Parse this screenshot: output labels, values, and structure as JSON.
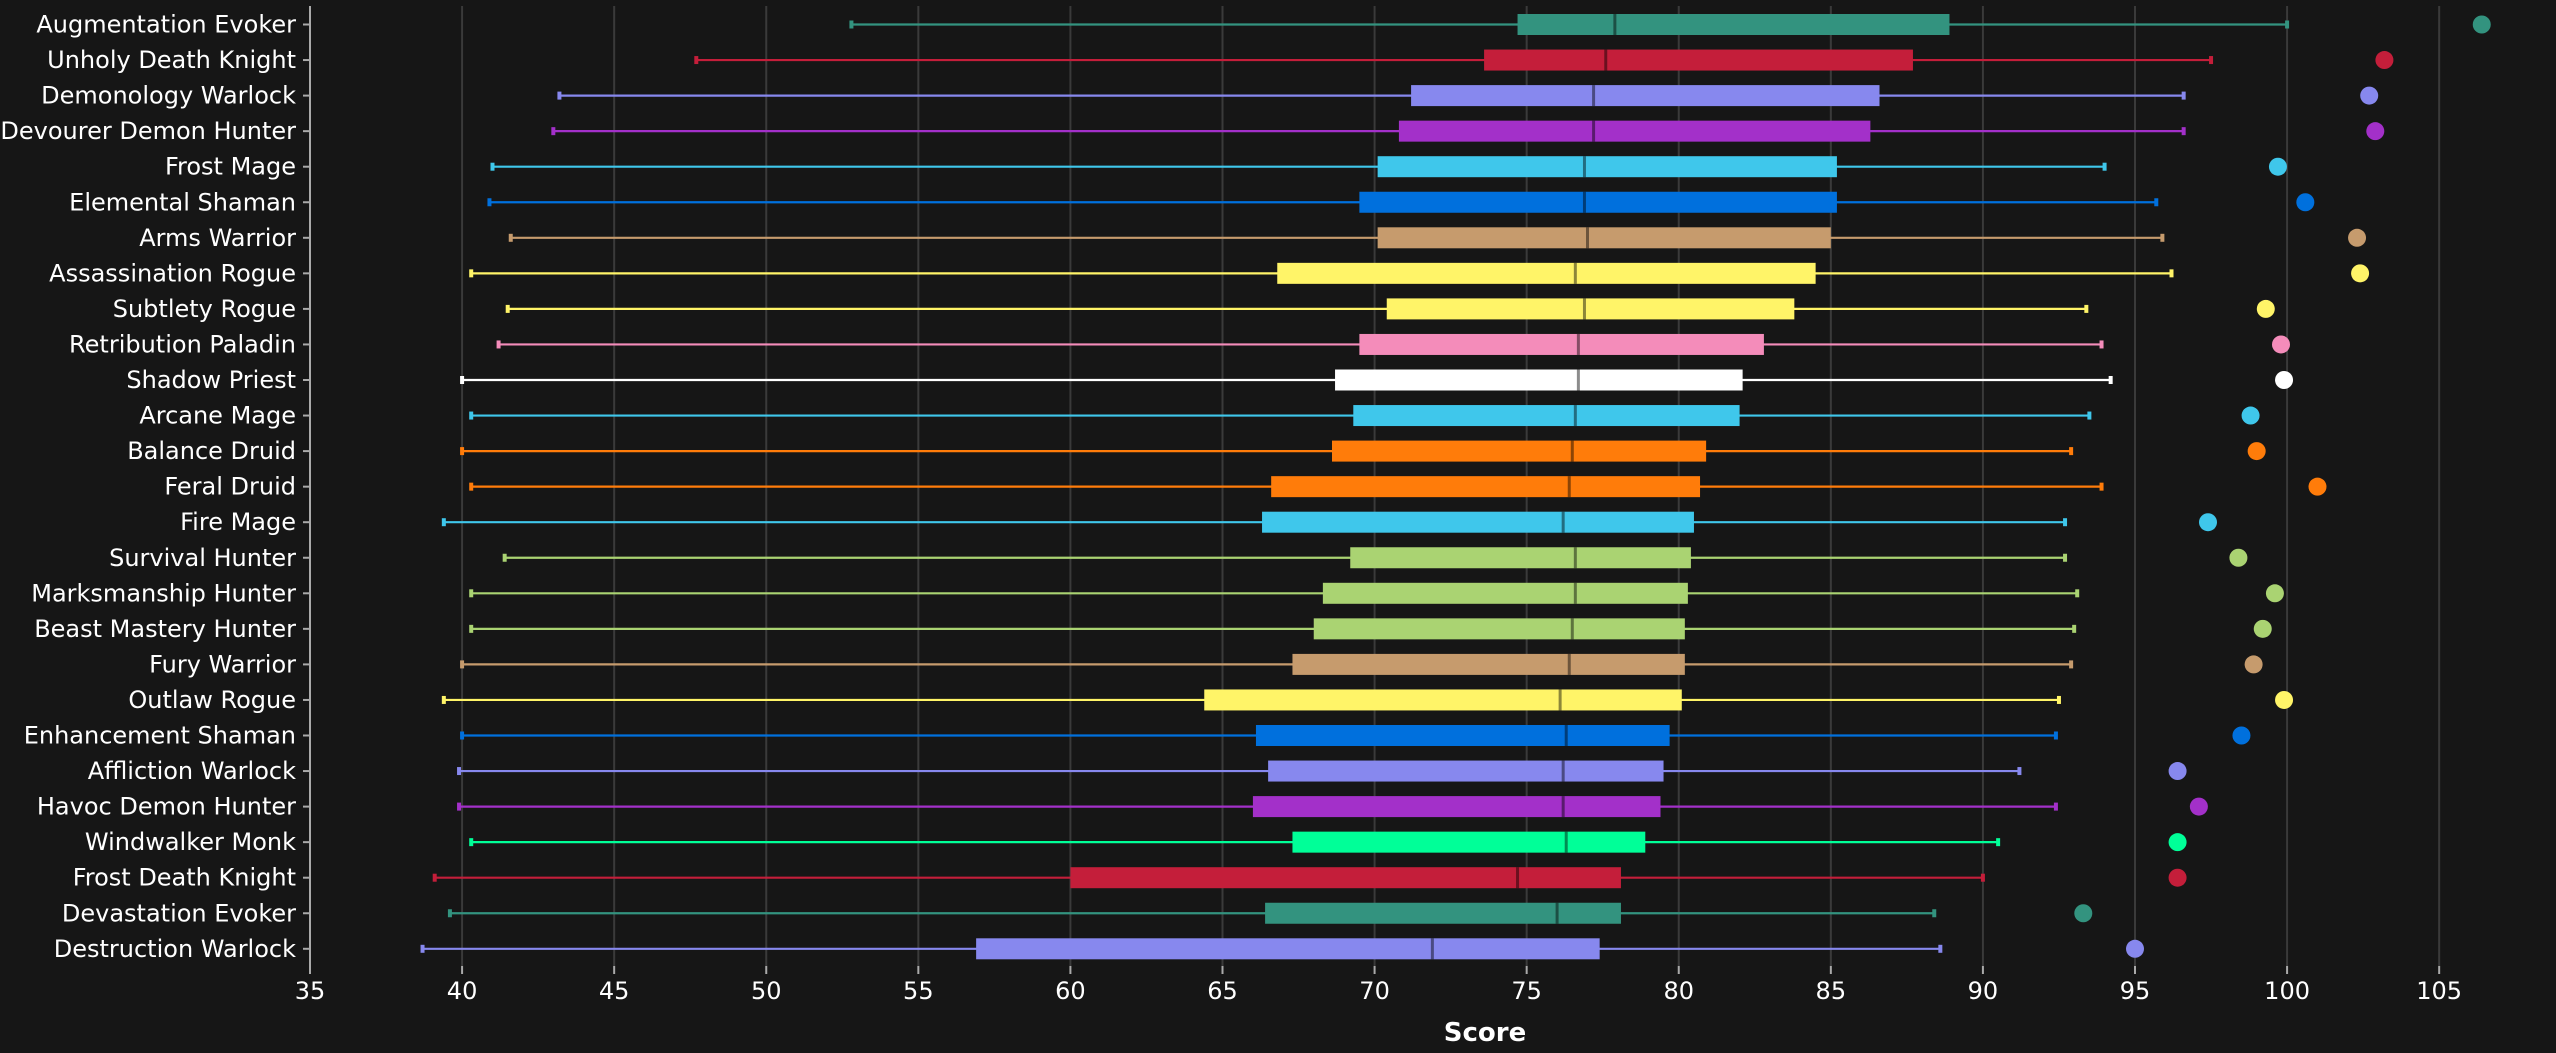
{
  "chart_data": {
    "type": "boxplot",
    "xlabel": "Score",
    "xlim": [
      35,
      107
    ],
    "xticks": [
      35,
      40,
      45,
      50,
      55,
      60,
      65,
      70,
      75,
      80,
      85,
      90,
      95,
      100,
      105
    ],
    "grid": "vertical",
    "series": [
      {
        "name": "Augmentation Evoker",
        "color": "#33937F",
        "min": 52.8,
        "q1": 74.7,
        "median": 77.9,
        "q3": 88.9,
        "max": 100.0,
        "outlier": 106.4
      },
      {
        "name": "Unholy Death Knight",
        "color": "#C41E3A",
        "min": 47.7,
        "q1": 73.6,
        "median": 77.6,
        "q3": 87.7,
        "max": 97.5,
        "outlier": 103.2
      },
      {
        "name": "Demonology Warlock",
        "color": "#8788EE",
        "min": 43.2,
        "q1": 71.2,
        "median": 77.2,
        "q3": 86.6,
        "max": 96.6,
        "outlier": 102.7
      },
      {
        "name": "Devourer Demon Hunter",
        "color": "#A330C9",
        "min": 43.0,
        "q1": 70.8,
        "median": 77.2,
        "q3": 86.3,
        "max": 96.6,
        "outlier": 102.9
      },
      {
        "name": "Frost Mage",
        "color": "#3FC7EB",
        "min": 41.0,
        "q1": 70.1,
        "median": 76.9,
        "q3": 85.2,
        "max": 94.0,
        "outlier": 99.7
      },
      {
        "name": "Elemental Shaman",
        "color": "#0070DD",
        "min": 40.9,
        "q1": 69.5,
        "median": 76.9,
        "q3": 85.2,
        "max": 95.7,
        "outlier": 100.6
      },
      {
        "name": "Arms Warrior",
        "color": "#C69B6D",
        "min": 41.6,
        "q1": 70.1,
        "median": 77.0,
        "q3": 85.0,
        "max": 95.9,
        "outlier": 102.3
      },
      {
        "name": "Assassination Rogue",
        "color": "#FFF468",
        "min": 40.3,
        "q1": 66.8,
        "median": 76.6,
        "q3": 84.5,
        "max": 96.2,
        "outlier": 102.4
      },
      {
        "name": "Subtlety Rogue",
        "color": "#FFF468",
        "min": 41.5,
        "q1": 70.4,
        "median": 76.9,
        "q3": 83.8,
        "max": 93.4,
        "outlier": 99.3
      },
      {
        "name": "Retribution Paladin",
        "color": "#F48CBA",
        "min": 41.2,
        "q1": 69.5,
        "median": 76.7,
        "q3": 82.8,
        "max": 93.9,
        "outlier": 99.8
      },
      {
        "name": "Shadow Priest",
        "color": "#FFFFFF",
        "min": 40.0,
        "q1": 68.7,
        "median": 76.7,
        "q3": 82.1,
        "max": 94.2,
        "outlier": 99.9
      },
      {
        "name": "Arcane Mage",
        "color": "#3FC7EB",
        "min": 40.3,
        "q1": 69.3,
        "median": 76.6,
        "q3": 82.0,
        "max": 93.5,
        "outlier": 98.8
      },
      {
        "name": "Balance Druid",
        "color": "#FF7C0A",
        "min": 40.0,
        "q1": 68.6,
        "median": 76.5,
        "q3": 80.9,
        "max": 92.9,
        "outlier": 99.0
      },
      {
        "name": "Feral Druid",
        "color": "#FF7C0A",
        "min": 40.3,
        "q1": 66.6,
        "median": 76.4,
        "q3": 80.7,
        "max": 93.9,
        "outlier": 101.0
      },
      {
        "name": "Fire Mage",
        "color": "#3FC7EB",
        "min": 39.4,
        "q1": 66.3,
        "median": 76.2,
        "q3": 80.5,
        "max": 92.7,
        "outlier": 97.4
      },
      {
        "name": "Survival Hunter",
        "color": "#AAD372",
        "min": 41.4,
        "q1": 69.2,
        "median": 76.6,
        "q3": 80.4,
        "max": 92.7,
        "outlier": 98.4
      },
      {
        "name": "Marksmanship Hunter",
        "color": "#AAD372",
        "min": 40.3,
        "q1": 68.3,
        "median": 76.6,
        "q3": 80.3,
        "max": 93.1,
        "outlier": 99.6
      },
      {
        "name": "Beast Mastery Hunter",
        "color": "#AAD372",
        "min": 40.3,
        "q1": 68.0,
        "median": 76.5,
        "q3": 80.2,
        "max": 93.0,
        "outlier": 99.2
      },
      {
        "name": "Fury Warrior",
        "color": "#C69B6D",
        "min": 40.0,
        "q1": 67.3,
        "median": 76.4,
        "q3": 80.2,
        "max": 92.9,
        "outlier": 98.9
      },
      {
        "name": "Outlaw Rogue",
        "color": "#FFF468",
        "min": 39.4,
        "q1": 64.4,
        "median": 76.1,
        "q3": 80.1,
        "max": 92.5,
        "outlier": 99.9
      },
      {
        "name": "Enhancement Shaman",
        "color": "#0070DD",
        "min": 40.0,
        "q1": 66.1,
        "median": 76.3,
        "q3": 79.7,
        "max": 92.4,
        "outlier": 98.5
      },
      {
        "name": "Affliction Warlock",
        "color": "#8788EE",
        "min": 39.9,
        "q1": 66.5,
        "median": 76.2,
        "q3": 79.5,
        "max": 91.2,
        "outlier": 96.4
      },
      {
        "name": "Havoc Demon Hunter",
        "color": "#A330C9",
        "min": 39.9,
        "q1": 66.0,
        "median": 76.2,
        "q3": 79.4,
        "max": 92.4,
        "outlier": 97.1
      },
      {
        "name": "Windwalker Monk",
        "color": "#00FF98",
        "min": 40.3,
        "q1": 67.3,
        "median": 76.3,
        "q3": 78.9,
        "max": 90.5,
        "outlier": 96.4
      },
      {
        "name": "Frost Death Knight",
        "color": "#C41E3A",
        "min": 39.1,
        "q1": 60.0,
        "median": 74.7,
        "q3": 78.1,
        "max": 90.0,
        "outlier": 96.4
      },
      {
        "name": "Devastation Evoker",
        "color": "#33937F",
        "min": 39.6,
        "q1": 66.4,
        "median": 76.0,
        "q3": 78.1,
        "max": 88.4,
        "outlier": 93.3
      },
      {
        "name": "Destruction Warlock",
        "color": "#8788EE",
        "min": 38.7,
        "q1": 56.9,
        "median": 71.9,
        "q3": 77.4,
        "max": 88.6,
        "outlier": 95.0
      }
    ]
  },
  "colors": {
    "background": "#161616",
    "grid": "#3a3a3a",
    "text": "#ffffff"
  }
}
